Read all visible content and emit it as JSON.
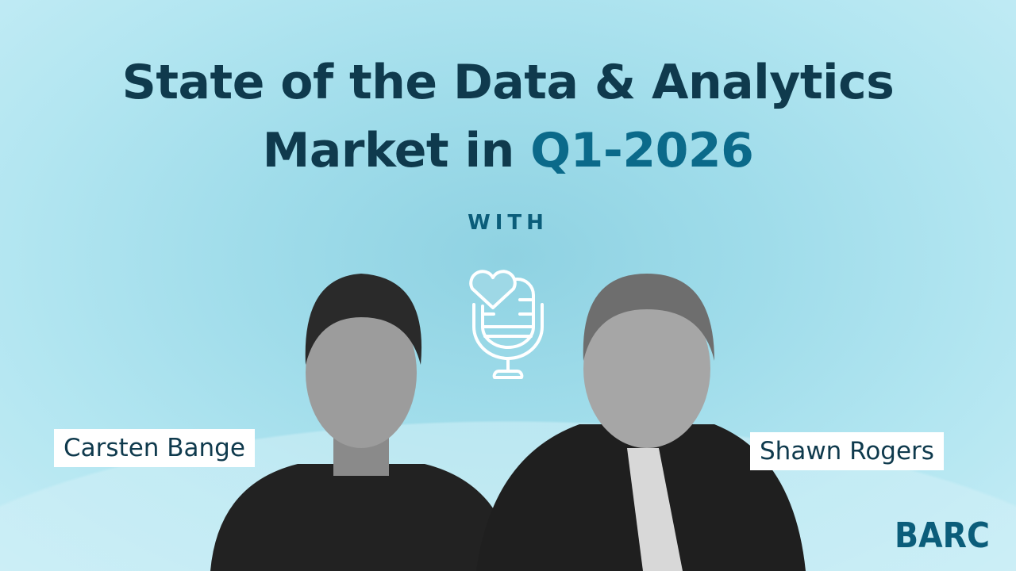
{
  "title": {
    "line1": "State of the Data & Analytics",
    "line2_prefix": "Market in ",
    "line2_accent": "Q1-2026"
  },
  "with_label": "WITH",
  "icon": "podcast-microphone-heart-icon",
  "speakers": [
    {
      "name": "Carsten Bange"
    },
    {
      "name": "Shawn Rogers"
    }
  ],
  "logo": "BARC",
  "colors": {
    "title": "#0f3a4d",
    "accent": "#0b6a8a",
    "background": "#a8e2ee",
    "logo": "#0b5d7a"
  }
}
